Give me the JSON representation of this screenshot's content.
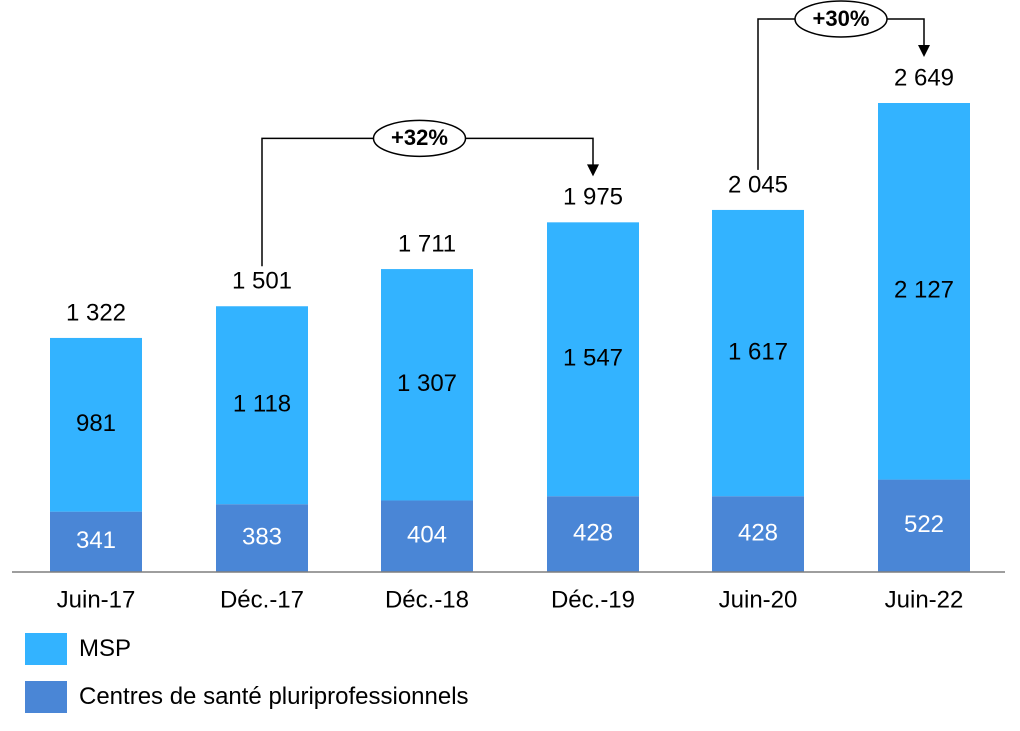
{
  "chart_data": {
    "type": "bar",
    "stacked": true,
    "categories": [
      "Juin-17",
      "Déc.-17",
      "Déc.-18",
      "Déc.-19",
      "Juin-20",
      "Juin-22"
    ],
    "series": [
      {
        "name": "Centres de santé pluriprofessionnels",
        "values": [
          341,
          383,
          404,
          428,
          428,
          522
        ],
        "color": "#4a86d6",
        "label_color": "#ffffff"
      },
      {
        "name": "MSP",
        "values": [
          981,
          1118,
          1307,
          1547,
          1617,
          2127
        ],
        "color": "#33b3ff",
        "label_color": "#000000"
      }
    ],
    "series_labels": [
      [
        "341",
        "383",
        "404",
        "428",
        "428",
        "522"
      ],
      [
        "981",
        "1 118",
        "1 307",
        "1 547",
        "1 617",
        "2 127"
      ]
    ],
    "totals": [
      1322,
      1501,
      1711,
      1975,
      2045,
      2649
    ],
    "total_labels": [
      "1 322",
      "1 501",
      "1 711",
      "1 975",
      "2 045",
      "2 649"
    ],
    "ylim": [
      0,
      2649
    ],
    "grid": false,
    "legend_position": "bottom-left",
    "annotations": [
      {
        "from": "Déc.-17",
        "to": "Déc.-19",
        "text": "+32%"
      },
      {
        "from": "Juin-20",
        "to": "Juin-22",
        "text": "+30%"
      }
    ]
  },
  "legend": [
    {
      "label": "MSP",
      "color": "#33b3ff"
    },
    {
      "label": "Centres de santé pluriprofessionnels",
      "color": "#4a86d6"
    }
  ]
}
